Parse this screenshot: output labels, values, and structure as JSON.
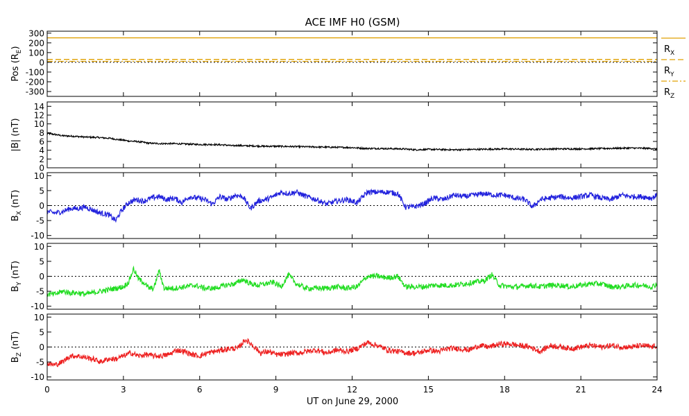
{
  "chart_data": {
    "type": "line",
    "title": "ACE IMF H0 (GSM)",
    "xlabel": "UT on June 29, 2000",
    "xlim": [
      0,
      24
    ],
    "xticks": [
      0,
      3,
      6,
      9,
      12,
      15,
      18,
      21,
      24
    ],
    "xtick_labels": [
      "0",
      "3",
      "6",
      "9",
      "12",
      "15",
      "18",
      "21",
      "24"
    ],
    "panels": [
      {
        "id": "pos",
        "ylabel_main": "Pos (R",
        "ylabel_sub": "E",
        "ylabel_tail": ")",
        "ylim": [
          -350,
          320
        ],
        "yticks": [
          300,
          200,
          100,
          0,
          -100,
          -200,
          -300
        ],
        "ytick_labels": [
          "300",
          "200",
          "100",
          "0",
          "-100",
          "-200",
          "-300"
        ],
        "zero_line": true,
        "series": [
          {
            "name_main": "R",
            "name_sub": "X",
            "color": "#e0a000",
            "dash": "",
            "x": [
              0,
              24
            ],
            "values": [
              252,
              252
            ]
          },
          {
            "name_main": "R",
            "name_sub": "Y",
            "color": "#e0a000",
            "dash": "8,4",
            "x": [
              0,
              24
            ],
            "values": [
              30,
              30
            ]
          },
          {
            "name_main": "R",
            "name_sub": "Z",
            "color": "#e0a000",
            "dash": "8,3,2,3",
            "x": [
              0,
              24
            ],
            "values": [
              10,
              10
            ]
          }
        ]
      },
      {
        "id": "bmag",
        "ylabel_main": "|B| (nT)",
        "ylabel_sub": "",
        "ylabel_tail": "",
        "ylim": [
          0,
          15
        ],
        "yticks": [
          14,
          12,
          10,
          8,
          6,
          4,
          2,
          0
        ],
        "ytick_labels": [
          "14",
          "12",
          "10",
          "8",
          "6",
          "4",
          "2",
          "0"
        ],
        "zero_line": false,
        "series": [
          {
            "color": "#000000",
            "x": [
              0.0,
              0.3,
              0.6,
              1.0,
              1.5,
              2.0,
              2.5,
              2.8,
              3.0,
              3.2,
              3.5,
              3.8,
              4.0,
              4.5,
              5.0,
              5.5,
              6.0,
              6.5,
              7.0,
              7.3,
              7.5,
              7.8,
              8.0,
              8.5,
              9.0,
              10.0,
              11.0,
              12.0,
              12.5,
              13.0,
              14.0,
              14.5,
              15.0,
              16.0,
              17.0,
              18.0,
              19.0,
              20.0,
              21.0,
              22.0,
              23.0,
              23.8,
              24.0
            ],
            "values": [
              7.8,
              7.6,
              7.3,
              7.2,
              7.0,
              6.9,
              6.7,
              6.4,
              6.3,
              6.1,
              6.0,
              5.8,
              5.6,
              5.5,
              5.5,
              5.4,
              5.3,
              5.3,
              5.2,
              5.0,
              5.1,
              5.0,
              5.0,
              4.9,
              4.9,
              4.8,
              4.7,
              4.6,
              4.4,
              4.4,
              4.3,
              4.1,
              4.2,
              4.1,
              4.2,
              4.3,
              4.2,
              4.3,
              4.3,
              4.4,
              4.5,
              4.4,
              4.2
            ]
          }
        ]
      },
      {
        "id": "bx",
        "ylabel_main": "B",
        "ylabel_sub": "X",
        "ylabel_tail": " (nT)",
        "ylim": [
          -11,
          11
        ],
        "yticks": [
          10,
          5,
          0,
          -5,
          -10
        ],
        "ytick_labels": [
          "10",
          "5",
          "0",
          "-5",
          "-10"
        ],
        "zero_line": true,
        "series": [
          {
            "color": "#2222dd",
            "x": [
              0.0,
              0.3,
              0.6,
              0.9,
              1.2,
              1.5,
              1.8,
              2.1,
              2.4,
              2.7,
              2.9,
              3.2,
              3.5,
              3.8,
              4.1,
              4.4,
              4.7,
              5.0,
              5.3,
              5.6,
              5.9,
              6.2,
              6.5,
              6.8,
              7.1,
              7.4,
              7.7,
              8.0,
              8.3,
              8.6,
              8.9,
              9.2,
              9.5,
              9.8,
              10.2,
              10.6,
              11.0,
              11.4,
              11.8,
              12.2,
              12.6,
              13.0,
              13.4,
              13.8,
              14.1,
              14.4,
              14.8,
              15.2,
              15.6,
              16.0,
              16.4,
              16.8,
              17.2,
              17.6,
              18.0,
              18.4,
              18.8,
              19.1,
              19.4,
              19.8,
              20.2,
              20.6,
              21.0,
              21.4,
              21.8,
              22.2,
              22.6,
              23.0,
              23.4,
              23.8,
              24.0
            ],
            "values": [
              -2.0,
              -2.5,
              -2.0,
              -1.0,
              -1.0,
              -0.5,
              -1.5,
              -2.5,
              -3.0,
              -5.0,
              -2.0,
              1.0,
              2.0,
              1.5,
              2.5,
              3.0,
              2.0,
              2.5,
              1.0,
              3.0,
              2.5,
              2.0,
              0.5,
              3.0,
              2.0,
              3.5,
              3.0,
              -1.0,
              1.5,
              2.0,
              3.0,
              4.5,
              4.0,
              4.5,
              3.0,
              2.0,
              0.5,
              1.5,
              2.0,
              1.0,
              4.5,
              4.5,
              4.5,
              4.0,
              -0.5,
              -0.5,
              0.5,
              2.5,
              2.0,
              3.5,
              3.0,
              3.5,
              4.0,
              3.5,
              3.5,
              2.5,
              2.0,
              -0.5,
              2.0,
              2.5,
              3.0,
              2.5,
              3.0,
              3.5,
              2.5,
              2.0,
              3.5,
              3.0,
              3.0,
              2.5,
              3.5
            ]
          }
        ]
      },
      {
        "id": "by",
        "ylabel_main": "B",
        "ylabel_sub": "Y",
        "ylabel_tail": " (nT)",
        "ylim": [
          -11,
          11
        ],
        "yticks": [
          10,
          5,
          0,
          -5,
          -10
        ],
        "ytick_labels": [
          "10",
          "5",
          "0",
          "-5",
          "-10"
        ],
        "zero_line": true,
        "series": [
          {
            "color": "#22dd22",
            "x": [
              0.0,
              0.3,
              0.6,
              0.9,
              1.2,
              1.5,
              1.8,
              2.1,
              2.4,
              2.7,
              3.0,
              3.2,
              3.4,
              3.6,
              3.8,
              4.0,
              4.2,
              4.4,
              4.6,
              5.0,
              5.4,
              5.8,
              6.2,
              6.6,
              7.0,
              7.4,
              7.7,
              8.0,
              8.3,
              8.6,
              8.9,
              9.2,
              9.5,
              9.8,
              10.2,
              10.6,
              11.0,
              11.4,
              11.8,
              12.2,
              12.6,
              13.0,
              13.4,
              13.8,
              14.1,
              14.4,
              14.8,
              15.2,
              15.6,
              16.0,
              16.4,
              16.8,
              17.2,
              17.5,
              17.8,
              18.2,
              18.6,
              19.0,
              19.4,
              19.8,
              20.2,
              20.6,
              21.0,
              21.4,
              21.8,
              22.2,
              22.6,
              23.0,
              23.4,
              23.8,
              24.0
            ],
            "values": [
              -6.0,
              -6.0,
              -5.0,
              -5.5,
              -5.5,
              -6.0,
              -5.5,
              -5.0,
              -4.5,
              -4.0,
              -3.5,
              -2.0,
              2.5,
              -1.0,
              -2.0,
              -4.0,
              -4.0,
              2.0,
              -4.0,
              -4.0,
              -3.5,
              -3.0,
              -4.0,
              -4.0,
              -3.0,
              -2.5,
              -1.0,
              -2.5,
              -3.0,
              -2.5,
              -2.0,
              -3.5,
              0.5,
              -2.5,
              -4.0,
              -4.0,
              -4.0,
              -3.5,
              -4.0,
              -3.5,
              0.0,
              0.0,
              -0.5,
              0.0,
              -3.5,
              -3.5,
              -3.5,
              -3.0,
              -3.0,
              -3.0,
              -2.5,
              -2.0,
              -1.5,
              0.5,
              -3.0,
              -3.5,
              -3.5,
              -3.0,
              -3.5,
              -3.0,
              -3.0,
              -3.5,
              -3.0,
              -2.5,
              -2.5,
              -3.5,
              -3.5,
              -3.0,
              -3.0,
              -3.5,
              -2.5
            ]
          }
        ]
      },
      {
        "id": "bz",
        "ylabel_main": "B",
        "ylabel_sub": "Z",
        "ylabel_tail": " (nT)",
        "ylim": [
          -11,
          11
        ],
        "yticks": [
          10,
          5,
          0,
          -5,
          -10
        ],
        "ytick_labels": [
          "10",
          "5",
          "0",
          "-5",
          "-10"
        ],
        "zero_line": true,
        "series": [
          {
            "color": "#ee2222",
            "x": [
              0.0,
              0.3,
              0.6,
              0.9,
              1.2,
              1.5,
              1.8,
              2.1,
              2.4,
              2.7,
              3.0,
              3.3,
              3.6,
              3.9,
              4.2,
              4.5,
              4.8,
              5.1,
              5.4,
              5.7,
              6.0,
              6.3,
              6.6,
              6.9,
              7.2,
              7.5,
              7.8,
              8.1,
              8.4,
              8.7,
              9.0,
              9.3,
              9.6,
              9.9,
              10.2,
              10.6,
              11.0,
              11.4,
              11.8,
              12.2,
              12.6,
              13.0,
              13.4,
              13.8,
              14.2,
              14.6,
              15.0,
              15.4,
              15.8,
              16.2,
              16.6,
              17.0,
              17.4,
              17.8,
              18.2,
              18.6,
              19.0,
              19.4,
              19.8,
              20.2,
              20.6,
              21.0,
              21.4,
              21.8,
              22.2,
              22.6,
              23.0,
              23.4,
              23.8,
              24.0
            ],
            "values": [
              -5.5,
              -6.0,
              -5.0,
              -3.0,
              -3.0,
              -3.5,
              -4.0,
              -5.0,
              -4.0,
              -4.0,
              -3.0,
              -2.0,
              -3.0,
              -2.5,
              -3.0,
              -3.0,
              -2.5,
              -1.0,
              -1.5,
              -2.5,
              -3.0,
              -2.0,
              -1.5,
              -1.0,
              -0.5,
              -0.5,
              2.5,
              0.5,
              -2.0,
              -1.5,
              -2.5,
              -2.5,
              -2.0,
              -2.0,
              -1.5,
              -1.0,
              -2.0,
              -1.0,
              -1.5,
              -0.5,
              1.5,
              0.5,
              -1.0,
              -1.5,
              -2.0,
              -2.0,
              -1.0,
              -1.5,
              -0.5,
              -0.5,
              -1.0,
              0.5,
              0.0,
              1.0,
              1.0,
              0.5,
              0.0,
              -1.5,
              0.5,
              0.0,
              -0.5,
              0.0,
              0.5,
              0.0,
              0.5,
              0.0,
              0.0,
              0.5,
              0.0,
              0.5
            ]
          }
        ]
      }
    ]
  }
}
